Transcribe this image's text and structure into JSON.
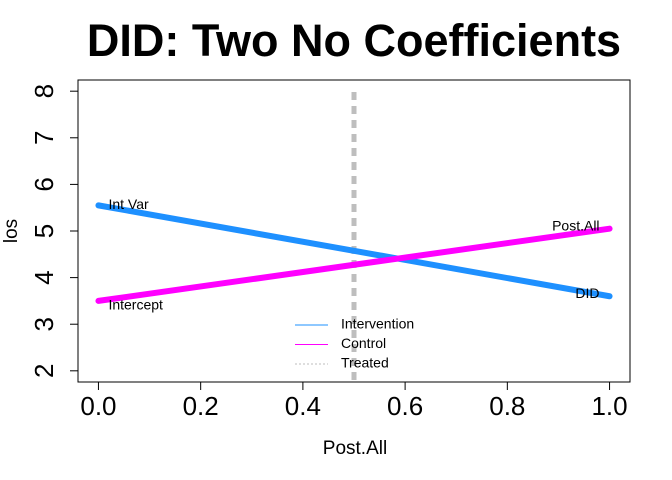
{
  "chart_data": {
    "type": "line",
    "title": "DID: Two No Coefficients",
    "xlabel": "Post.All",
    "ylabel": "los",
    "series": [
      {
        "name": "Intervention",
        "color": "#1e90ff",
        "x": [
          0,
          1
        ],
        "values": [
          5.55,
          3.6
        ]
      },
      {
        "name": "Control",
        "color": "#ff00ff",
        "x": [
          0,
          1
        ],
        "values": [
          3.5,
          5.05
        ]
      }
    ],
    "vline": {
      "name": "Treated",
      "color": "#bebebe",
      "x": 0.5
    },
    "annotations": [
      {
        "text": "Int Var",
        "x": 0,
        "y": 5.55
      },
      {
        "text": "Intercept",
        "x": 0,
        "y": 3.5
      },
      {
        "text": "Post.All",
        "x": 1,
        "y": 5.05
      },
      {
        "text": "DID",
        "x": 1,
        "y": 3.6
      }
    ],
    "xlim": [
      -0.04,
      1.04
    ],
    "ylim": [
      1.76,
      8.24
    ],
    "xticks": [
      {
        "value": 0,
        "label": "0.0"
      },
      0.2,
      0.4,
      0.6,
      0.8,
      {
        "value": 1,
        "label": "1.0"
      }
    ],
    "yticks": [
      2,
      3,
      4,
      5,
      6,
      7,
      8
    ],
    "legend": "bottom"
  }
}
